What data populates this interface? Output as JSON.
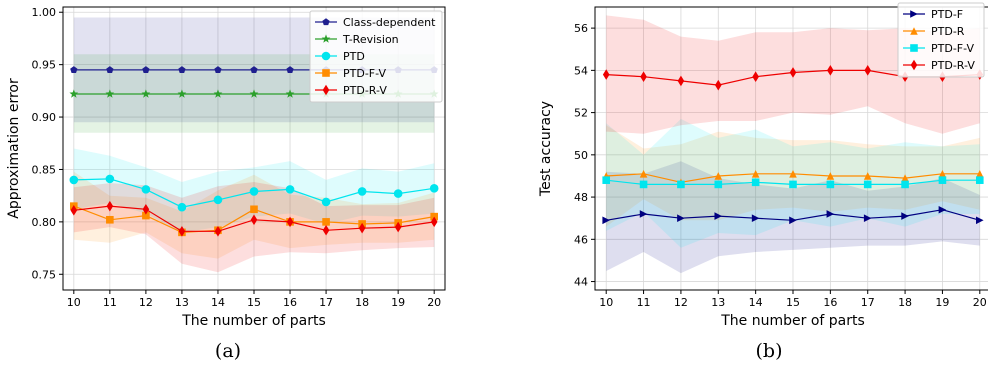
{
  "captions": {
    "a": "(a)",
    "b": "(b)"
  },
  "chart_data": [
    {
      "type": "line",
      "panel": "a",
      "title": "",
      "xlabel": "The number of parts",
      "ylabel": "Approximation error",
      "x": [
        10,
        11,
        12,
        13,
        14,
        15,
        16,
        17,
        18,
        19,
        20
      ],
      "xlim": [
        9.7,
        20.3
      ],
      "ylim": [
        0.735,
        1.005
      ],
      "yticks": [
        0.75,
        0.8,
        0.85,
        0.9,
        0.95,
        1.0
      ],
      "ytick_labels": [
        "0.75",
        "0.80",
        "0.85",
        "0.90",
        "0.95",
        "1.00"
      ],
      "grid": true,
      "legend": "top-right",
      "series": [
        {
          "name": "Class-dependent",
          "color": "#1f1f8f",
          "marker": "pentagon",
          "values": [
            0.945,
            0.945,
            0.945,
            0.945,
            0.945,
            0.945,
            0.945,
            0.945,
            0.945,
            0.945,
            0.945
          ],
          "lower": [
            0.895,
            0.895,
            0.895,
            0.895,
            0.895,
            0.895,
            0.895,
            0.895,
            0.895,
            0.895,
            0.895
          ],
          "upper": [
            0.995,
            0.995,
            0.995,
            0.995,
            0.995,
            0.995,
            0.995,
            0.995,
            0.995,
            0.995,
            0.995
          ]
        },
        {
          "name": "T-Revision",
          "color": "#2ca02c",
          "marker": "star",
          "values": [
            0.922,
            0.922,
            0.922,
            0.922,
            0.922,
            0.922,
            0.922,
            0.922,
            0.922,
            0.922,
            0.922
          ],
          "lower": [
            0.885,
            0.885,
            0.885,
            0.885,
            0.885,
            0.885,
            0.885,
            0.885,
            0.885,
            0.885,
            0.885
          ],
          "upper": [
            0.96,
            0.96,
            0.96,
            0.96,
            0.96,
            0.96,
            0.96,
            0.96,
            0.96,
            0.96,
            0.96
          ]
        },
        {
          "name": "PTD",
          "color": "#00e5ee",
          "marker": "circle",
          "values": [
            0.84,
            0.841,
            0.831,
            0.814,
            0.821,
            0.829,
            0.831,
            0.819,
            0.829,
            0.827,
            0.832
          ],
          "lower": [
            0.812,
            0.818,
            0.808,
            0.79,
            0.795,
            0.805,
            0.808,
            0.798,
            0.806,
            0.805,
            0.808
          ],
          "upper": [
            0.87,
            0.863,
            0.852,
            0.838,
            0.848,
            0.852,
            0.858,
            0.84,
            0.851,
            0.848,
            0.856
          ]
        },
        {
          "name": "PTD-F-V",
          "color": "#ff8c00",
          "marker": "square",
          "values": [
            0.815,
            0.802,
            0.806,
            0.79,
            0.792,
            0.812,
            0.8,
            0.8,
            0.798,
            0.799,
            0.805
          ],
          "lower": [
            0.783,
            0.78,
            0.79,
            0.77,
            0.765,
            0.783,
            0.775,
            0.778,
            0.78,
            0.78,
            0.783
          ],
          "upper": [
            0.848,
            0.825,
            0.823,
            0.81,
            0.83,
            0.845,
            0.826,
            0.823,
            0.817,
            0.818,
            0.828
          ]
        },
        {
          "name": "PTD-R-V",
          "color": "#ee0000",
          "marker": "diamond",
          "values": [
            0.811,
            0.815,
            0.812,
            0.791,
            0.791,
            0.802,
            0.8,
            0.792,
            0.794,
            0.795,
            0.8
          ],
          "lower": [
            0.79,
            0.795,
            0.788,
            0.76,
            0.752,
            0.767,
            0.771,
            0.77,
            0.773,
            0.775,
            0.776
          ],
          "upper": [
            0.833,
            0.837,
            0.835,
            0.823,
            0.834,
            0.838,
            0.832,
            0.815,
            0.816,
            0.816,
            0.823
          ]
        }
      ]
    },
    {
      "type": "line",
      "panel": "b",
      "title": "",
      "xlabel": "The number of parts",
      "ylabel": "Test accuracy",
      "x": [
        10,
        11,
        12,
        13,
        14,
        15,
        16,
        17,
        18,
        19,
        20
      ],
      "xlim": [
        9.7,
        20.3
      ],
      "ylim": [
        43.6,
        57.0
      ],
      "yticks": [
        44,
        46,
        48,
        50,
        52,
        54,
        56
      ],
      "ytick_labels": [
        "44",
        "46",
        "48",
        "50",
        "52",
        "54",
        "56"
      ],
      "grid": true,
      "legend": "top-right",
      "series": [
        {
          "name": "PTD-F",
          "color": "#000080",
          "marker": "triangle-right",
          "values": [
            46.9,
            47.2,
            47.0,
            47.1,
            47.0,
            46.9,
            47.2,
            47.0,
            47.1,
            47.4,
            46.9
          ],
          "lower": [
            44.5,
            45.4,
            44.4,
            45.2,
            45.4,
            45.5,
            45.6,
            45.7,
            45.7,
            45.9,
            45.7
          ],
          "upper": [
            49.2,
            49.1,
            49.7,
            48.9,
            48.6,
            48.4,
            48.8,
            48.3,
            48.5,
            48.9,
            48.1
          ]
        },
        {
          "name": "PTD-R",
          "color": "#ff8c00",
          "marker": "triangle-up",
          "values": [
            49.0,
            49.1,
            48.7,
            49.0,
            49.1,
            49.1,
            49.0,
            49.0,
            48.9,
            49.1,
            49.1
          ],
          "lower": [
            46.6,
            47.9,
            46.9,
            46.9,
            47.4,
            47.5,
            47.3,
            47.5,
            47.4,
            47.8,
            47.4
          ],
          "upper": [
            51.4,
            50.3,
            50.5,
            51.1,
            50.8,
            50.7,
            50.7,
            50.5,
            50.4,
            50.4,
            50.8
          ]
        },
        {
          "name": "PTD-F-V",
          "color": "#00e5ee",
          "marker": "square",
          "values": [
            48.8,
            48.6,
            48.6,
            48.6,
            48.7,
            48.6,
            48.6,
            48.6,
            48.6,
            48.8,
            48.8
          ],
          "lower": [
            46.4,
            47.3,
            45.6,
            46.3,
            46.2,
            46.9,
            46.6,
            47.0,
            46.6,
            47.2,
            47.2
          ],
          "upper": [
            51.5,
            50.0,
            51.7,
            50.8,
            51.2,
            50.4,
            50.6,
            50.3,
            50.6,
            50.4,
            50.5
          ]
        },
        {
          "name": "PTD-R-V",
          "color": "#ee0000",
          "marker": "diamond",
          "values": [
            53.8,
            53.7,
            53.5,
            53.3,
            53.7,
            53.9,
            54.0,
            54.0,
            53.7,
            53.7,
            53.8
          ],
          "lower": [
            51.1,
            51.0,
            51.4,
            51.6,
            51.6,
            52.0,
            51.9,
            52.3,
            51.5,
            51.0,
            51.5
          ],
          "upper": [
            56.6,
            56.4,
            55.6,
            55.4,
            55.8,
            55.8,
            56.0,
            55.9,
            56.0,
            55.8,
            56.0
          ]
        }
      ]
    }
  ]
}
